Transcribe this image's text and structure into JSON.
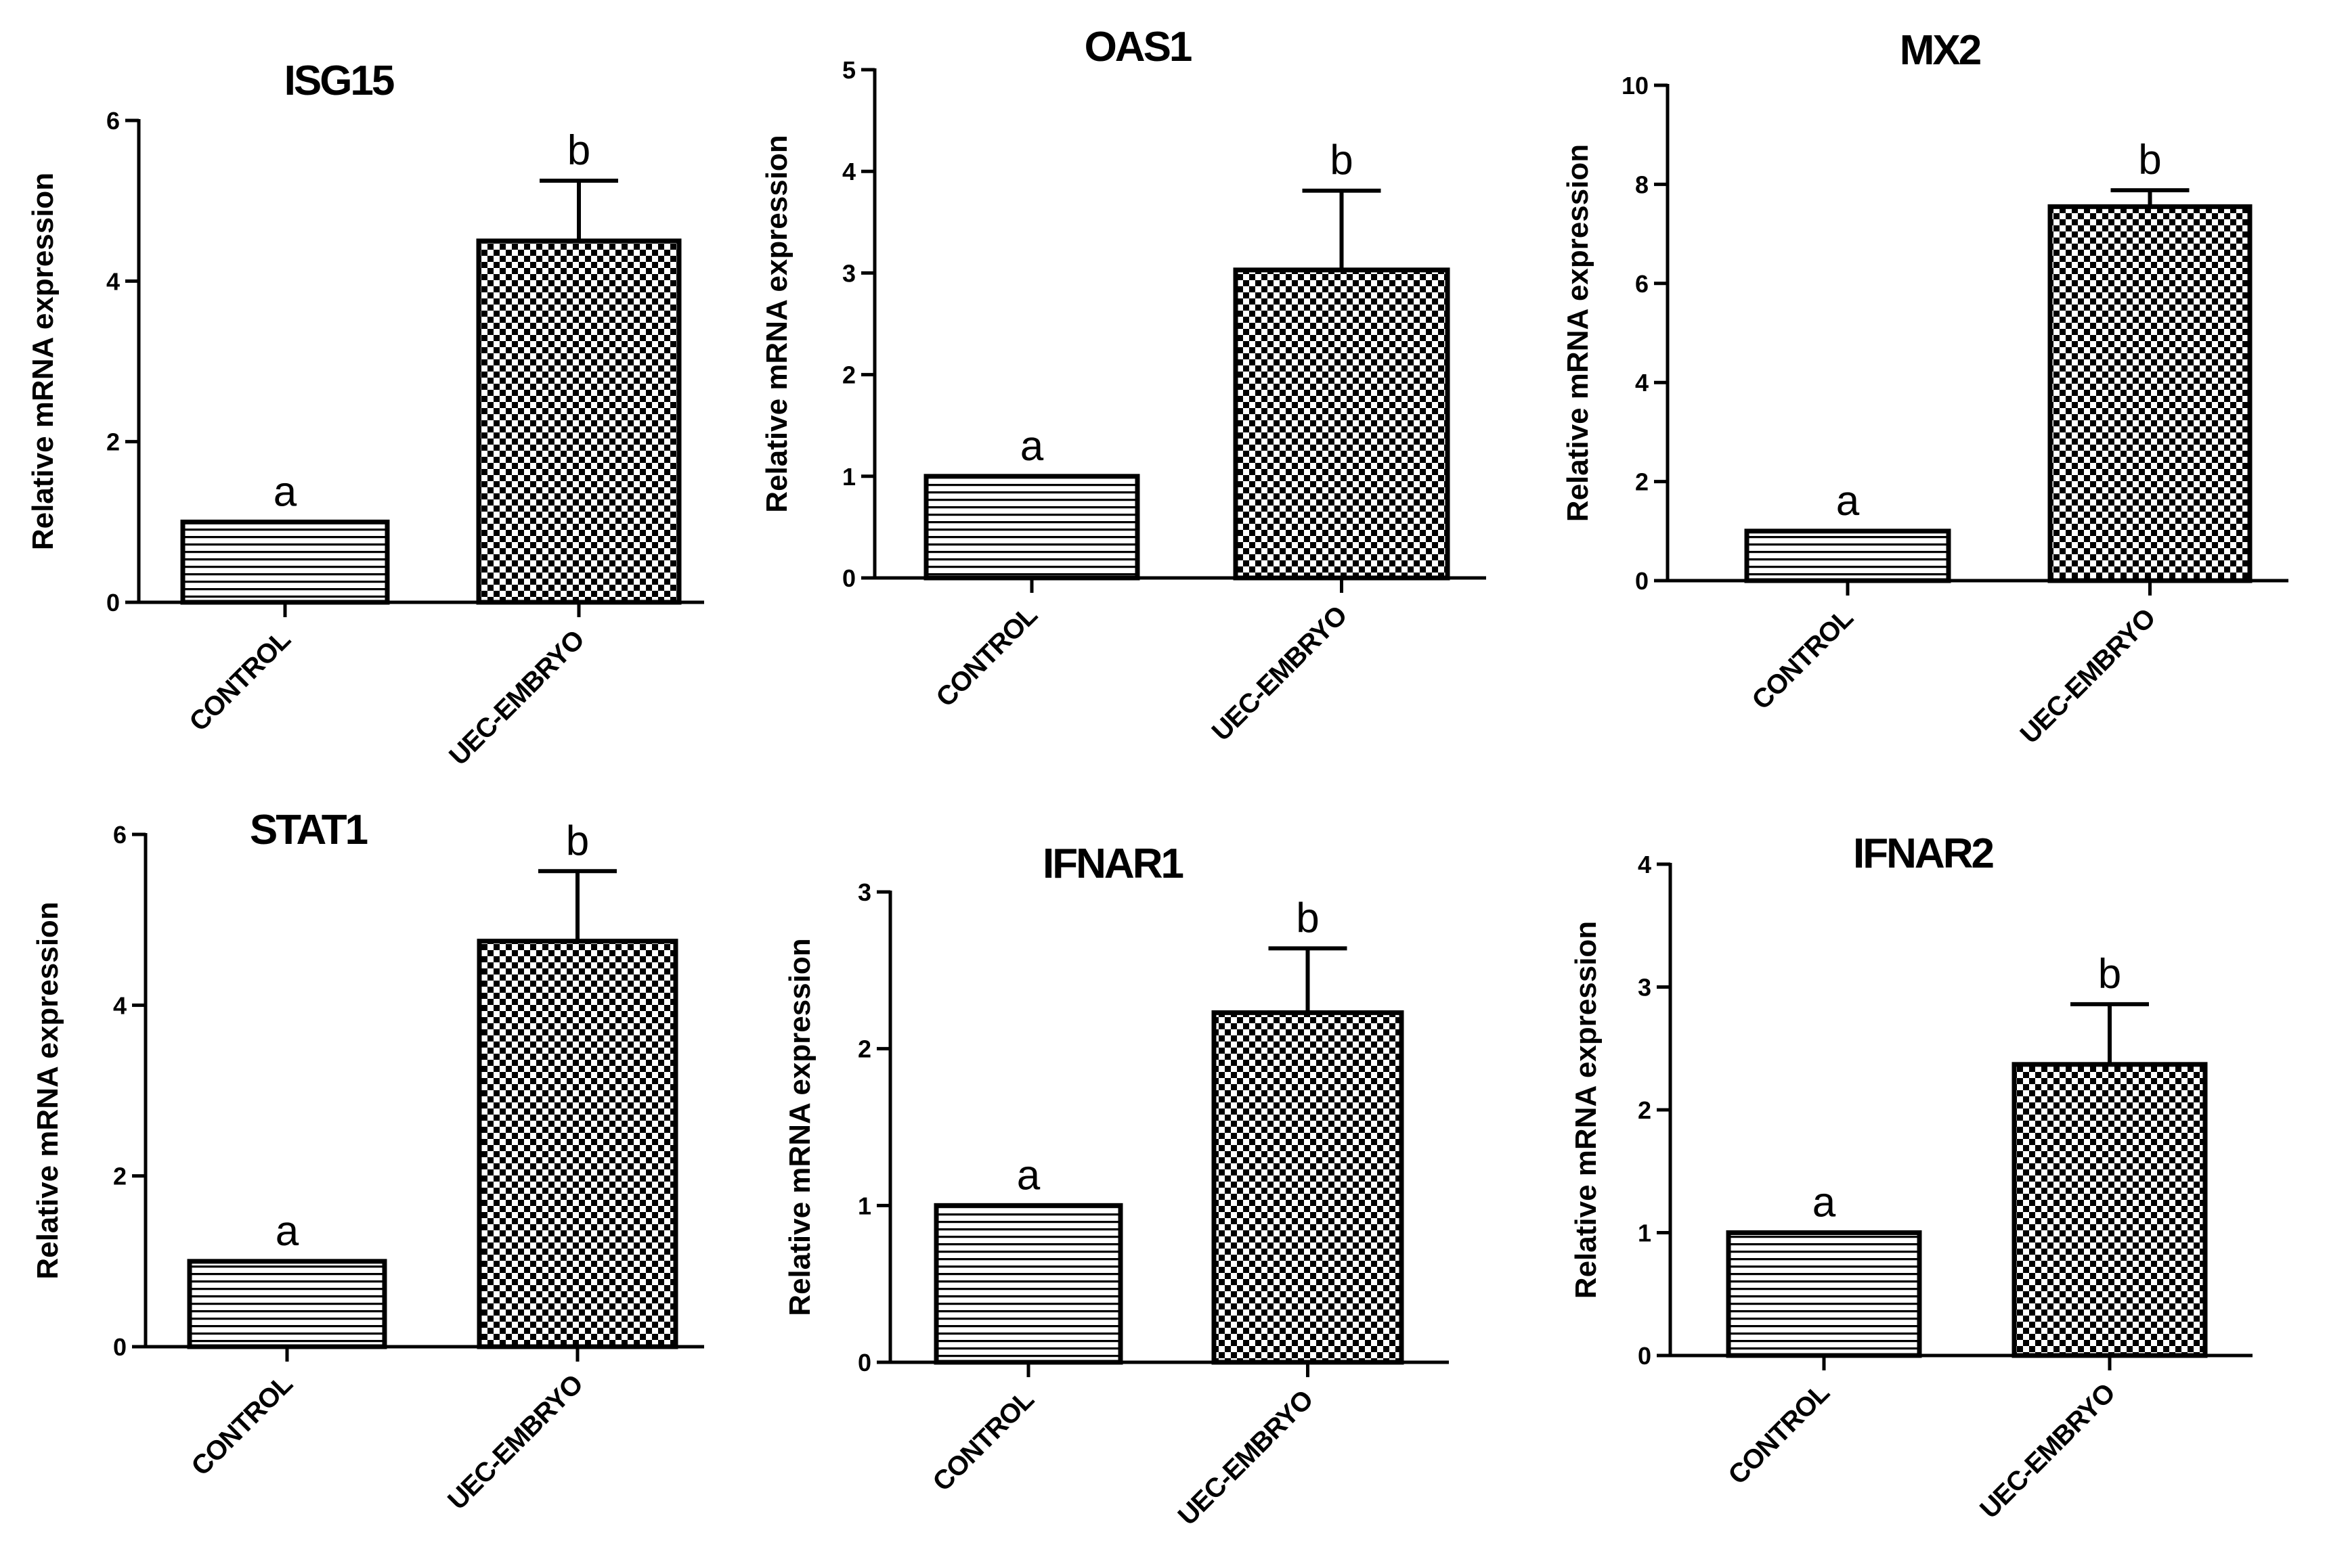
{
  "chart_data": [
    {
      "type": "bar",
      "title": "ISG15",
      "ylabel": "Relative mRNA expression",
      "xlabel": "",
      "categories": [
        "CONTROL",
        "UEC-EMBRYO"
      ],
      "values": [
        1.0,
        4.5
      ],
      "errors": [
        0.0,
        0.75
      ],
      "significance": [
        "a",
        "b"
      ],
      "ylim": [
        0,
        6
      ],
      "yticks": [
        0,
        2,
        4,
        6
      ],
      "patterns": [
        "horizontal-lines",
        "checkerboard"
      ]
    },
    {
      "type": "bar",
      "title": "OAS1",
      "ylabel": "Relative mRNA expression",
      "xlabel": "",
      "categories": [
        "CONTROL",
        "UEC-EMBRYO"
      ],
      "values": [
        1.0,
        3.03
      ],
      "errors": [
        0.0,
        0.78
      ],
      "significance": [
        "a",
        "b"
      ],
      "ylim": [
        0,
        5
      ],
      "yticks": [
        0,
        1,
        2,
        3,
        4,
        5
      ],
      "patterns": [
        "horizontal-lines",
        "checkerboard"
      ]
    },
    {
      "type": "bar",
      "title": "MX2",
      "ylabel": "Relative mRNA expression",
      "xlabel": "",
      "categories": [
        "CONTROL",
        "UEC-EMBRYO"
      ],
      "values": [
        1.0,
        7.55
      ],
      "errors": [
        0.0,
        0.33
      ],
      "significance": [
        "a",
        "b"
      ],
      "ylim": [
        0,
        10
      ],
      "yticks": [
        0,
        2,
        4,
        6,
        8,
        10
      ],
      "patterns": [
        "horizontal-lines",
        "checkerboard"
      ]
    },
    {
      "type": "bar",
      "title": "STAT1",
      "ylabel": "Relative mRNA expression",
      "xlabel": "",
      "categories": [
        "CONTROL",
        "UEC-EMBRYO"
      ],
      "values": [
        1.0,
        4.75
      ],
      "errors": [
        0.0,
        0.82
      ],
      "significance": [
        "a",
        "b"
      ],
      "ylim": [
        0,
        6
      ],
      "yticks": [
        0,
        2,
        4,
        6
      ],
      "patterns": [
        "horizontal-lines",
        "checkerboard"
      ]
    },
    {
      "type": "bar",
      "title": "IFNAR1",
      "ylabel": "Relative mRNA expression",
      "xlabel": "",
      "categories": [
        "CONTROL",
        "UEC-EMBRYO"
      ],
      "values": [
        1.0,
        2.23
      ],
      "errors": [
        0.0,
        0.41
      ],
      "significance": [
        "a",
        "b"
      ],
      "ylim": [
        0,
        3
      ],
      "yticks": [
        0,
        1,
        2,
        3
      ],
      "patterns": [
        "horizontal-lines",
        "checkerboard"
      ]
    },
    {
      "type": "bar",
      "title": "IFNAR2",
      "ylabel": "Relative mRNA expression",
      "xlabel": "",
      "categories": [
        "CONTROL",
        "UEC-EMBRYO"
      ],
      "values": [
        1.0,
        2.37
      ],
      "errors": [
        0.0,
        0.49
      ],
      "significance": [
        "a",
        "b"
      ],
      "ylim": [
        0,
        4
      ],
      "yticks": [
        0,
        1,
        2,
        3,
        4
      ],
      "patterns": [
        "horizontal-lines",
        "checkerboard"
      ]
    }
  ],
  "colors": {
    "ink": "#000000",
    "background": "#ffffff"
  }
}
